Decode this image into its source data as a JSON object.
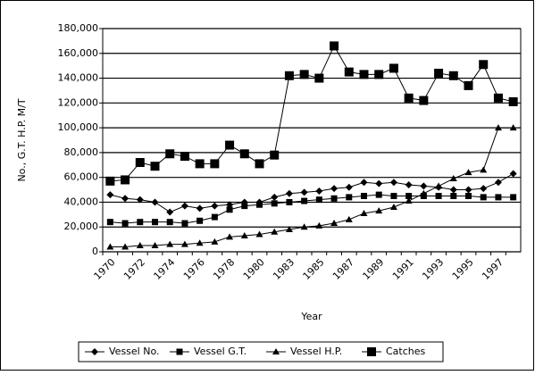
{
  "chart_data": {
    "type": "line",
    "y_label": "No., G.T. H.P. M/T",
    "x_label": "Year",
    "categories": [
      "1970",
      null,
      "1972",
      null,
      "1974",
      null,
      "1976",
      null,
      "1978",
      null,
      "1980",
      null,
      "1983",
      null,
      "1985",
      null,
      "1987",
      null,
      "1989",
      null,
      "1991",
      null,
      "1993",
      null,
      "1995",
      null,
      "1997",
      null
    ],
    "series": [
      {
        "name": "Vessel No.",
        "color": "#000000",
        "marker": "diamond",
        "values": [
          46000,
          43000,
          42000,
          40000,
          32000,
          37000,
          35000,
          37000,
          38000,
          40000,
          40000,
          44000,
          47000,
          48000,
          49000,
          51000,
          52000,
          56000,
          55000,
          56000,
          54000,
          53000,
          52000,
          50000,
          50000,
          51000,
          56000,
          63000
        ]
      },
      {
        "name": "Vessel G.T.",
        "color": "#000000",
        "marker": "square",
        "values": [
          24000,
          23000,
          24000,
          24000,
          24000,
          23000,
          25000,
          28000,
          34000,
          37000,
          38000,
          39000,
          40000,
          41000,
          42000,
          43000,
          44000,
          45000,
          46000,
          45000,
          45000,
          45000,
          45000,
          45000,
          45000,
          44000,
          44000,
          44000
        ]
      },
      {
        "name": "Vessel H.P.",
        "color": "#000000",
        "marker": "triangle",
        "values": [
          4000,
          4000,
          5000,
          5000,
          6000,
          6000,
          7000,
          8000,
          12000,
          13000,
          14000,
          16000,
          18000,
          20000,
          21000,
          23000,
          26000,
          31000,
          33000,
          36000,
          41000,
          47000,
          53000,
          59000,
          64000,
          66000,
          100000,
          100000
        ]
      },
      {
        "name": "Catches",
        "color": "#000000",
        "marker": "bigsquare",
        "values": [
          57000,
          58000,
          72000,
          69000,
          79000,
          77000,
          71000,
          71000,
          86000,
          79000,
          71000,
          78000,
          142000,
          143000,
          140000,
          166000,
          145000,
          143000,
          143000,
          148000,
          124000,
          122000,
          144000,
          142000,
          134000,
          151000,
          124000,
          121000
        ]
      }
    ],
    "ylim": [
      0,
      180000
    ],
    "yticks": [
      0,
      {
        "value": 20000,
        "label": "20,000"
      },
      {
        "value": 40000,
        "label": "40,000"
      },
      {
        "value": 60000,
        "label": "60,000"
      },
      {
        "value": 80000,
        "label": "80,000"
      },
      {
        "value": 100000,
        "label": "100,000"
      },
      {
        "value": 120000,
        "label": "120,000"
      },
      {
        "value": 140000,
        "label": "140,000"
      },
      {
        "value": 160000,
        "label": "160,000"
      },
      {
        "value": 180000,
        "label": "180,000"
      }
    ],
    "grid": true,
    "legend": "bottom"
  }
}
